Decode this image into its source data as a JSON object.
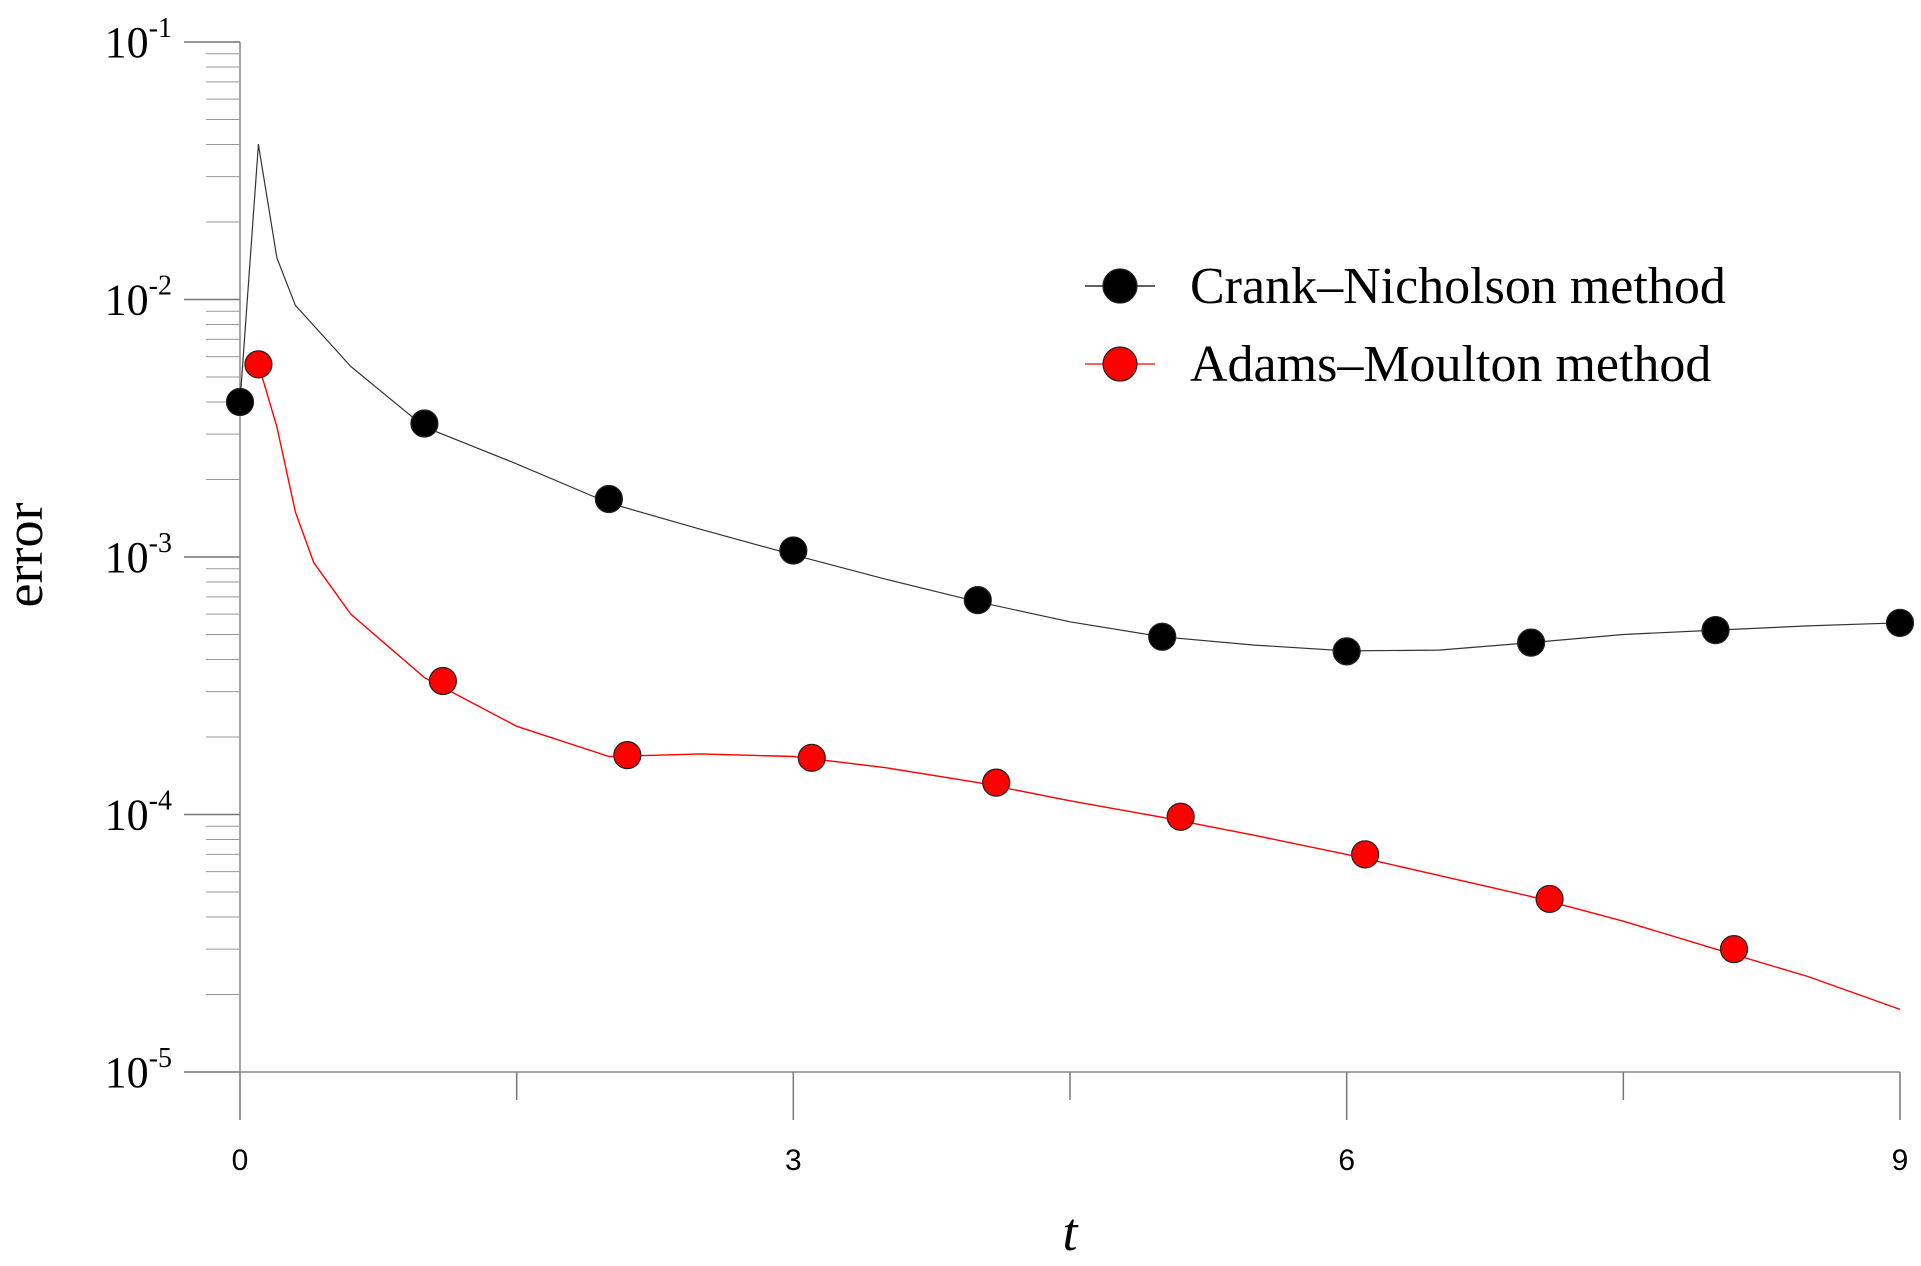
{
  "chart_data": {
    "type": "line",
    "xlabel": "t",
    "ylabel": "error",
    "xlim": [
      0,
      9
    ],
    "ylim": [
      1e-05,
      0.1
    ],
    "yscale": "log",
    "x_ticks": [
      0,
      3,
      6,
      9
    ],
    "x_tick_labels": [
      "0",
      "3",
      "6",
      "9"
    ],
    "y_ticks": [
      {
        "value": 1e-05,
        "base": "10",
        "exp": "-5"
      },
      {
        "value": 0.0001,
        "base": "10",
        "exp": "-4"
      },
      {
        "value": 0.001,
        "base": "10",
        "exp": "-3"
      },
      {
        "value": 0.01,
        "base": "10",
        "exp": "-2"
      },
      {
        "value": 0.1,
        "base": "10",
        "exp": "-1"
      }
    ],
    "grid": false,
    "legend_position": "top-right",
    "series": [
      {
        "name": "Crank–Nicholson method",
        "color": "#000000",
        "marker_color": "#000000",
        "line": [
          [
            0.0,
            0.004
          ],
          [
            0.1,
            0.04
          ],
          [
            0.2,
            0.0145
          ],
          [
            0.3,
            0.0095
          ],
          [
            0.6,
            0.0055
          ],
          [
            1.0,
            0.0032
          ],
          [
            1.5,
            0.0023
          ],
          [
            2.0,
            0.00162
          ],
          [
            2.5,
            0.00128
          ],
          [
            3.0,
            0.00102
          ],
          [
            3.5,
            0.00082
          ],
          [
            4.0,
            0.00067
          ],
          [
            4.5,
            0.00056
          ],
          [
            5.0,
            0.00049
          ],
          [
            5.5,
            0.000455
          ],
          [
            6.0,
            0.000432
          ],
          [
            6.5,
            0.000435
          ],
          [
            7.0,
            0.000465
          ],
          [
            7.5,
            0.0005
          ],
          [
            8.0,
            0.00052
          ],
          [
            8.5,
            0.00054
          ],
          [
            9.0,
            0.000555
          ]
        ],
        "markers": [
          [
            0.0,
            0.004
          ],
          [
            1.0,
            0.0033
          ],
          [
            2.0,
            0.00168
          ],
          [
            3.0,
            0.00106
          ],
          [
            4.0,
            0.00068
          ],
          [
            5.0,
            0.00049
          ],
          [
            6.0,
            0.00043
          ],
          [
            7.0,
            0.000465
          ],
          [
            8.0,
            0.00052
          ],
          [
            9.0,
            0.000555
          ]
        ]
      },
      {
        "name": "Adams–Moulton method",
        "color": "#ff0000",
        "marker_color": "#ff0000",
        "line": [
          [
            0.1,
            0.0056
          ],
          [
            0.2,
            0.0032
          ],
          [
            0.3,
            0.0015
          ],
          [
            0.4,
            0.00095
          ],
          [
            0.6,
            0.0006
          ],
          [
            1.0,
            0.00034
          ],
          [
            1.5,
            0.00022
          ],
          [
            2.0,
            0.000168
          ],
          [
            2.5,
            0.000172
          ],
          [
            3.0,
            0.000168
          ],
          [
            3.5,
            0.000152
          ],
          [
            4.0,
            0.000133
          ],
          [
            4.5,
            0.000113
          ],
          [
            5.0,
            9.75e-05
          ],
          [
            5.5,
            8.3e-05
          ],
          [
            6.0,
            7e-05
          ],
          [
            6.5,
            5.8e-05
          ],
          [
            7.0,
            4.8e-05
          ],
          [
            7.5,
            3.85e-05
          ],
          [
            8.0,
            3e-05
          ],
          [
            8.5,
            2.35e-05
          ],
          [
            9.0,
            1.75e-05
          ]
        ],
        "markers": [
          [
            0.1,
            0.0056
          ],
          [
            1.1,
            0.00033
          ],
          [
            2.1,
            0.00017
          ],
          [
            3.1,
            0.000166
          ],
          [
            4.1,
            0.000133
          ],
          [
            5.1,
            9.8e-05
          ],
          [
            6.1,
            7e-05
          ],
          [
            7.1,
            4.7e-05
          ],
          [
            8.1,
            3e-05
          ]
        ]
      }
    ]
  }
}
